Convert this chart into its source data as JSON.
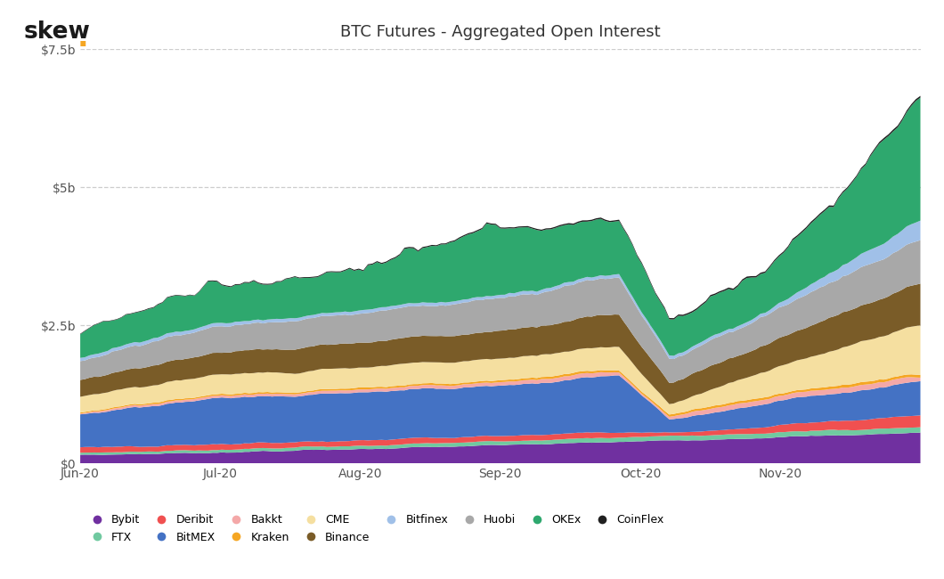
{
  "title": "BTC Futures - Aggregated Open Interest",
  "ylim": [
    0,
    7500000000
  ],
  "yticks": [
    0,
    2500000000,
    5000000000,
    7500000000
  ],
  "ytick_labels": [
    "$0",
    "$2.5b",
    "$5b",
    "$7.5b"
  ],
  "xtick_labels": [
    "Jun-20",
    "Jul-20",
    "Aug-20",
    "Sep-20",
    "Oct-20",
    "Nov-20"
  ],
  "background_color": "#ffffff",
  "grid_color": "#c8c8c8",
  "skew_color": "#1a1a1a",
  "dot_color": "#f5a623",
  "legend_row1": [
    {
      "name": "Bybit",
      "color": "#7030a0"
    },
    {
      "name": "FTX",
      "color": "#70c9a0"
    },
    {
      "name": "Deribit",
      "color": "#f05050"
    },
    {
      "name": "BitMEX",
      "color": "#4472c4"
    },
    {
      "name": "Bakkt",
      "color": "#f4a8a8"
    },
    {
      "name": "Kraken",
      "color": "#f5a623"
    },
    {
      "name": "CME",
      "color": "#f5dfa0"
    },
    {
      "name": "Binance",
      "color": "#7a5c28"
    }
  ],
  "legend_row2": [
    {
      "name": "Bitfinex",
      "color": "#a0c0e8"
    },
    {
      "name": "Huobi",
      "color": "#a8a8a8"
    },
    {
      "name": "OKEx",
      "color": "#2ea86e"
    },
    {
      "name": "CoinFlex",
      "color": "#202020"
    }
  ]
}
